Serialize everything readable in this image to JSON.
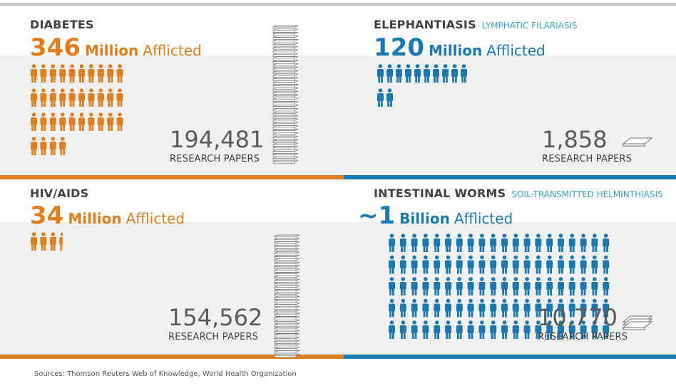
{
  "colors": {
    "orange": "#e07f1f",
    "blue": "#1a7ab0"
  },
  "chart_data": {
    "type": "pictogram",
    "panels": [
      {
        "disease": "DIABETES",
        "subtitle": "",
        "afflicted_number": "346",
        "afflicted_unit": "Million",
        "afflicted_word": "Afflicted",
        "afflicted_millions": 346,
        "people_icons": 34,
        "research_papers": "194,481",
        "research_papers_value": 194481,
        "papers_label": "RESEARCH PAPERS",
        "color": "#e07f1f"
      },
      {
        "disease": "ELEPHANTIASIS",
        "subtitle": "LYMPHATIC FILARIASIS",
        "afflicted_number": "120",
        "afflicted_unit": "Million",
        "afflicted_word": "Afflicted",
        "afflicted_millions": 120,
        "people_icons": 12,
        "research_papers": "1,858",
        "research_papers_value": 1858,
        "papers_label": "RESEARCH PAPERS",
        "color": "#1a7ab0"
      },
      {
        "disease": "HIV/AIDS",
        "subtitle": "",
        "afflicted_number": "34",
        "afflicted_unit": "Million",
        "afflicted_word": "Afflicted",
        "afflicted_millions": 34,
        "people_icons": 3.4,
        "research_papers": "154,562",
        "research_papers_value": 154562,
        "papers_label": "RESEARCH PAPERS",
        "color": "#e07f1f"
      },
      {
        "disease": "INTESTINAL WORMS",
        "subtitle": "SOIL-TRANSMITTED HELMINTHIASIS",
        "afflicted_number": "~1",
        "afflicted_unit": "Billion",
        "afflicted_word": "Afflicted",
        "afflicted_millions": 1000,
        "people_icons": 100,
        "research_papers": "10,770",
        "research_papers_value": 10770,
        "papers_label": "RESEARCH PAPERS",
        "color": "#1a7ab0"
      }
    ]
  },
  "source": "Sources: Thomson Reuters Web of Knowledge, World Health Organization"
}
